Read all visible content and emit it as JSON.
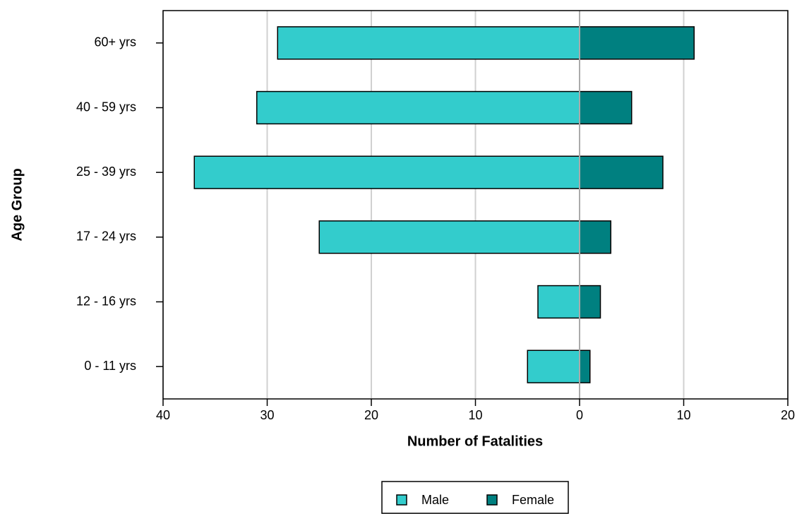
{
  "chart_data": {
    "type": "pyramid",
    "x_label": "Number of Fatalities",
    "y_label": "Age Group",
    "categories": [
      "0 - 11 yrs",
      "12 - 16 yrs",
      "17 - 24 yrs",
      "25 - 39 yrs",
      "40 - 59 yrs",
      "60+ yrs"
    ],
    "series": [
      {
        "name": "Male",
        "color": "#33cccc",
        "values": [
          -5,
          -4,
          -25,
          -37,
          -31,
          -29
        ]
      },
      {
        "name": "Female",
        "color": "#008080",
        "values": [
          1,
          2,
          3,
          8,
          5,
          11
        ]
      }
    ],
    "xlim": [
      -40,
      20
    ],
    "xticks": [
      {
        "value": -40,
        "label": "40"
      },
      {
        "value": -30,
        "label": "30"
      },
      {
        "value": -20,
        "label": "20"
      },
      {
        "value": -10,
        "label": "10"
      },
      0,
      10,
      20
    ],
    "grid": true,
    "legend": "bottom"
  }
}
